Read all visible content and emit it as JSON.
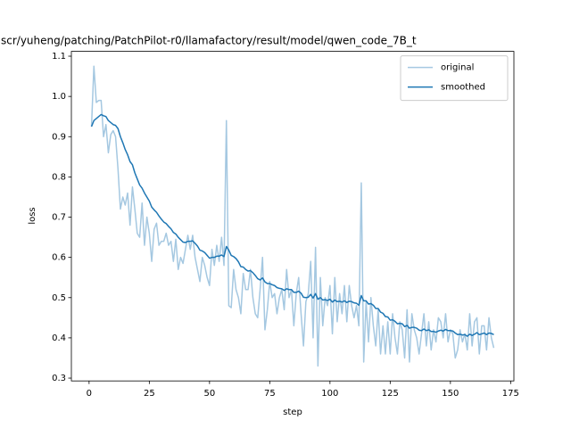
{
  "chart_data": {
    "type": "line",
    "title": "scr/yuheng/patching/PatchPilot-r0/llamafactory/result/model/qwen_code_7B_t",
    "xlabel": "step",
    "ylabel": "loss",
    "x": [
      1,
      2,
      3,
      4,
      5,
      6,
      7,
      8,
      9,
      10,
      11,
      12,
      13,
      14,
      15,
      16,
      17,
      18,
      19,
      20,
      21,
      22,
      23,
      24,
      25,
      26,
      27,
      28,
      29,
      30,
      31,
      32,
      33,
      34,
      35,
      36,
      37,
      38,
      39,
      40,
      41,
      42,
      43,
      44,
      45,
      46,
      47,
      48,
      49,
      50,
      51,
      52,
      53,
      54,
      55,
      56,
      57,
      58,
      59,
      60,
      61,
      62,
      63,
      64,
      65,
      66,
      67,
      68,
      69,
      70,
      71,
      72,
      73,
      74,
      75,
      76,
      77,
      78,
      79,
      80,
      81,
      82,
      83,
      84,
      85,
      86,
      87,
      88,
      89,
      90,
      91,
      92,
      93,
      94,
      95,
      96,
      97,
      98,
      99,
      100,
      101,
      102,
      103,
      104,
      105,
      106,
      107,
      108,
      109,
      110,
      111,
      112,
      113,
      114,
      115,
      116,
      117,
      118,
      119,
      120,
      121,
      122,
      123,
      124,
      125,
      126,
      127,
      128,
      129,
      130,
      131,
      132,
      133,
      134,
      135,
      136,
      137,
      138,
      139,
      140,
      141,
      142,
      143,
      144,
      145,
      146,
      147,
      148,
      149,
      150,
      151,
      152,
      153,
      154,
      155,
      156,
      157,
      158,
      159,
      160,
      161,
      162,
      163,
      164,
      165,
      166,
      167,
      168
    ],
    "series": [
      {
        "name": "original",
        "color": "#a5c8e1",
        "values": [
          0.925,
          1.075,
          0.985,
          0.99,
          0.99,
          0.9,
          0.93,
          0.86,
          0.905,
          0.915,
          0.9,
          0.82,
          0.72,
          0.75,
          0.73,
          0.76,
          0.68,
          0.775,
          0.72,
          0.66,
          0.65,
          0.735,
          0.63,
          0.7,
          0.66,
          0.59,
          0.67,
          0.685,
          0.63,
          0.64,
          0.64,
          0.66,
          0.63,
          0.64,
          0.59,
          0.645,
          0.57,
          0.6,
          0.585,
          0.62,
          0.655,
          0.62,
          0.655,
          0.6,
          0.57,
          0.54,
          0.6,
          0.58,
          0.55,
          0.53,
          0.62,
          0.58,
          0.63,
          0.59,
          0.65,
          0.58,
          0.94,
          0.48,
          0.475,
          0.57,
          0.52,
          0.5,
          0.46,
          0.56,
          0.52,
          0.52,
          0.57,
          0.5,
          0.46,
          0.45,
          0.52,
          0.6,
          0.42,
          0.47,
          0.54,
          0.5,
          0.51,
          0.46,
          0.5,
          0.52,
          0.47,
          0.57,
          0.5,
          0.52,
          0.43,
          0.51,
          0.55,
          0.46,
          0.38,
          0.49,
          0.51,
          0.59,
          0.4,
          0.625,
          0.33,
          0.55,
          0.43,
          0.5,
          0.48,
          0.53,
          0.41,
          0.55,
          0.44,
          0.51,
          0.46,
          0.53,
          0.44,
          0.53,
          0.48,
          0.45,
          0.48,
          0.43,
          0.785,
          0.34,
          0.49,
          0.39,
          0.5,
          0.43,
          0.38,
          0.47,
          0.36,
          0.43,
          0.36,
          0.44,
          0.36,
          0.46,
          0.4,
          0.36,
          0.44,
          0.42,
          0.35,
          0.47,
          0.34,
          0.46,
          0.42,
          0.4,
          0.36,
          0.41,
          0.46,
          0.38,
          0.44,
          0.37,
          0.42,
          0.39,
          0.45,
          0.44,
          0.4,
          0.46,
          0.39,
          0.42,
          0.41,
          0.35,
          0.37,
          0.42,
          0.39,
          0.41,
          0.37,
          0.46,
          0.38,
          0.44,
          0.45,
          0.36,
          0.43,
          0.43,
          0.37,
          0.45,
          0.4,
          0.375
        ]
      },
      {
        "name": "smoothed",
        "color": "#1f77b4",
        "values": [
          0.925,
          0.94,
          0.945,
          0.95,
          0.955,
          0.952,
          0.95,
          0.94,
          0.935,
          0.93,
          0.928,
          0.92,
          0.9,
          0.885,
          0.868,
          0.855,
          0.838,
          0.83,
          0.81,
          0.795,
          0.78,
          0.772,
          0.76,
          0.75,
          0.74,
          0.725,
          0.718,
          0.712,
          0.703,
          0.695,
          0.688,
          0.684,
          0.677,
          0.671,
          0.662,
          0.658,
          0.65,
          0.644,
          0.638,
          0.637,
          0.64,
          0.64,
          0.641,
          0.635,
          0.628,
          0.618,
          0.616,
          0.612,
          0.605,
          0.598,
          0.6,
          0.6,
          0.603,
          0.603,
          0.606,
          0.602,
          0.627,
          0.618,
          0.605,
          0.602,
          0.597,
          0.589,
          0.577,
          0.576,
          0.57,
          0.566,
          0.567,
          0.562,
          0.555,
          0.547,
          0.544,
          0.549,
          0.539,
          0.535,
          0.535,
          0.532,
          0.53,
          0.525,
          0.523,
          0.522,
          0.518,
          0.522,
          0.52,
          0.52,
          0.513,
          0.513,
          0.516,
          0.511,
          0.501,
          0.5,
          0.501,
          0.508,
          0.499,
          0.51,
          0.496,
          0.5,
          0.494,
          0.495,
          0.493,
          0.496,
          0.489,
          0.494,
          0.49,
          0.491,
          0.489,
          0.492,
          0.488,
          0.491,
          0.49,
          0.487,
          0.486,
          0.481,
          0.505,
          0.492,
          0.492,
          0.484,
          0.485,
          0.481,
          0.473,
          0.473,
          0.464,
          0.461,
          0.453,
          0.452,
          0.444,
          0.445,
          0.441,
          0.435,
          0.436,
          0.435,
          0.428,
          0.431,
          0.424,
          0.426,
          0.426,
          0.424,
          0.419,
          0.418,
          0.422,
          0.418,
          0.42,
          0.416,
          0.416,
          0.414,
          0.417,
          0.419,
          0.417,
          0.421,
          0.418,
          0.418,
          0.417,
          0.412,
          0.408,
          0.409,
          0.407,
          0.408,
          0.404,
          0.409,
          0.406,
          0.409,
          0.413,
          0.408,
          0.41,
          0.412,
          0.408,
          0.412,
          0.411,
          0.408
        ]
      }
    ],
    "xlim": [
      -7.35,
      176.35
    ],
    "xticks": [
      0,
      25,
      50,
      75,
      100,
      125,
      150,
      175
    ],
    "ylim": [
      0.293,
      1.112
    ],
    "yticks": [
      0.3,
      0.4,
      0.5,
      0.6,
      0.7,
      0.8,
      0.9,
      {
        "value": 1,
        "label": "1.0"
      },
      1.1
    ],
    "legend": "upper right"
  }
}
